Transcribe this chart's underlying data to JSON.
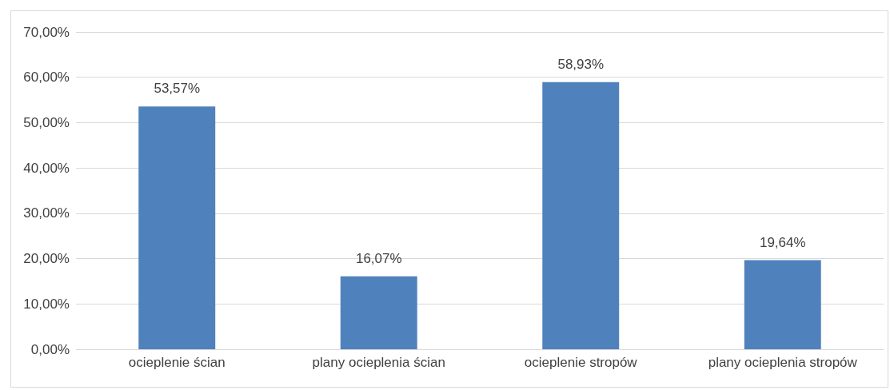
{
  "chart_data": {
    "type": "bar",
    "categories": [
      "ocieplenie ścian",
      "plany ocieplenia ścian",
      "ocieplenie stropów",
      "plany ocieplenia stropów"
    ],
    "values": [
      53.57,
      16.07,
      58.93,
      19.64
    ],
    "value_labels": [
      "53,57%",
      "16,07%",
      "58,93%",
      "19,64%"
    ],
    "color": "#4f81bd",
    "ylim": [
      0,
      70
    ],
    "yticks": [
      {
        "value": 0,
        "label": "0,00%"
      },
      {
        "value": 10,
        "label": "10,00%"
      },
      {
        "value": 20,
        "label": "20,00%"
      },
      {
        "value": 30,
        "label": "30,00%"
      },
      {
        "value": 40,
        "label": "40,00%"
      },
      {
        "value": 50,
        "label": "50,00%"
      },
      {
        "value": 60,
        "label": "60,00%"
      },
      {
        "value": 70,
        "label": "70,00%"
      }
    ],
    "grid": true
  }
}
